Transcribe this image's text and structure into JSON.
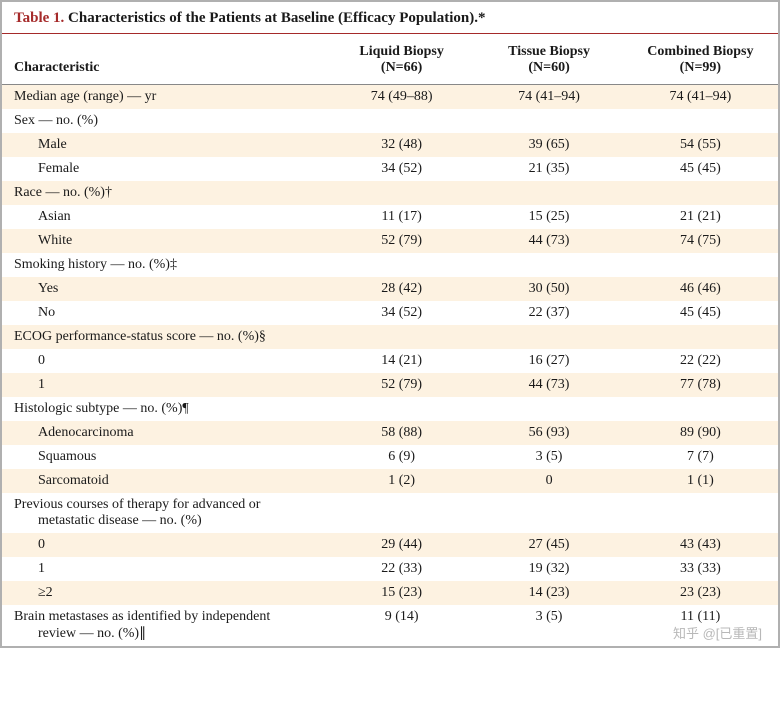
{
  "table": {
    "label": "Table 1.",
    "title": "Characteristics of the Patients at Baseline (Efficacy Population).*",
    "title_color": "#a52a2a",
    "stripe_color": "#fdf2e1",
    "columns": [
      {
        "header_line1": "Characteristic",
        "header_line2": ""
      },
      {
        "header_line1": "Liquid Biopsy",
        "header_line2": "(N=66)"
      },
      {
        "header_line1": "Tissue Biopsy",
        "header_line2": "(N=60)"
      },
      {
        "header_line1": "Combined Biopsy",
        "header_line2": "(N=99)"
      }
    ],
    "rows": [
      {
        "stripe": true,
        "indent": 0,
        "label": "Median age (range) — yr",
        "c1": "74 (49–88)",
        "c2": "74 (41–94)",
        "c3": "74 (41–94)"
      },
      {
        "stripe": false,
        "indent": 0,
        "label": "Sex — no. (%)",
        "c1": "",
        "c2": "",
        "c3": ""
      },
      {
        "stripe": true,
        "indent": 1,
        "label": "Male",
        "c1": "32 (48)",
        "c2": "39 (65)",
        "c3": "54 (55)"
      },
      {
        "stripe": false,
        "indent": 1,
        "label": "Female",
        "c1": "34 (52)",
        "c2": "21 (35)",
        "c3": "45 (45)"
      },
      {
        "stripe": true,
        "indent": 0,
        "label": "Race — no. (%)†",
        "c1": "",
        "c2": "",
        "c3": ""
      },
      {
        "stripe": false,
        "indent": 1,
        "label": "Asian",
        "c1": "11 (17)",
        "c2": "15 (25)",
        "c3": "21 (21)"
      },
      {
        "stripe": true,
        "indent": 1,
        "label": "White",
        "c1": "52 (79)",
        "c2": "44 (73)",
        "c3": "74 (75)"
      },
      {
        "stripe": false,
        "indent": 0,
        "label": "Smoking history — no. (%)‡",
        "c1": "",
        "c2": "",
        "c3": ""
      },
      {
        "stripe": true,
        "indent": 1,
        "label": "Yes",
        "c1": "28 (42)",
        "c2": "30 (50)",
        "c3": "46 (46)"
      },
      {
        "stripe": false,
        "indent": 1,
        "label": "No",
        "c1": "34 (52)",
        "c2": "22 (37)",
        "c3": "45 (45)"
      },
      {
        "stripe": true,
        "indent": 0,
        "label": "ECOG performance-status score — no. (%)§",
        "c1": "",
        "c2": "",
        "c3": ""
      },
      {
        "stripe": false,
        "indent": 1,
        "label": "0",
        "c1": "14 (21)",
        "c2": "16 (27)",
        "c3": "22 (22)"
      },
      {
        "stripe": true,
        "indent": 1,
        "label": "1",
        "c1": "52 (79)",
        "c2": "44 (73)",
        "c3": "77 (78)"
      },
      {
        "stripe": false,
        "indent": 0,
        "label": "Histologic subtype — no. (%)¶",
        "c1": "",
        "c2": "",
        "c3": ""
      },
      {
        "stripe": true,
        "indent": 1,
        "label": "Adenocarcinoma",
        "c1": "58 (88)",
        "c2": "56 (93)",
        "c3": "89 (90)"
      },
      {
        "stripe": false,
        "indent": 1,
        "label": "Squamous",
        "c1": "6 (9)",
        "c2": "3 (5)",
        "c3": "7 (7)"
      },
      {
        "stripe": true,
        "indent": 1,
        "label": "Sarcomatoid",
        "c1": "1 (2)",
        "c2": "0",
        "c3": "1 (1)"
      },
      {
        "stripe": false,
        "indent": 0,
        "wrap": true,
        "label": "Previous courses of therapy for advanced or",
        "label2": "metastatic disease — no. (%)",
        "c1": "",
        "c2": "",
        "c3": ""
      },
      {
        "stripe": true,
        "indent": 1,
        "label": "0",
        "c1": "29 (44)",
        "c2": "27 (45)",
        "c3": "43 (43)"
      },
      {
        "stripe": false,
        "indent": 1,
        "label": "1",
        "c1": "22 (33)",
        "c2": "19 (32)",
        "c3": "33 (33)"
      },
      {
        "stripe": true,
        "indent": 1,
        "label": "≥2",
        "c1": "15 (23)",
        "c2": "14 (23)",
        "c3": "23 (23)"
      },
      {
        "stripe": false,
        "indent": 0,
        "wrap": true,
        "label": "Brain metastases as identified by independent",
        "label2": "review — no. (%)∥",
        "c1": "9 (14)",
        "c2": "3 (5)",
        "c3": "11 (11)"
      }
    ]
  },
  "watermark": "知乎 @[已重置]"
}
